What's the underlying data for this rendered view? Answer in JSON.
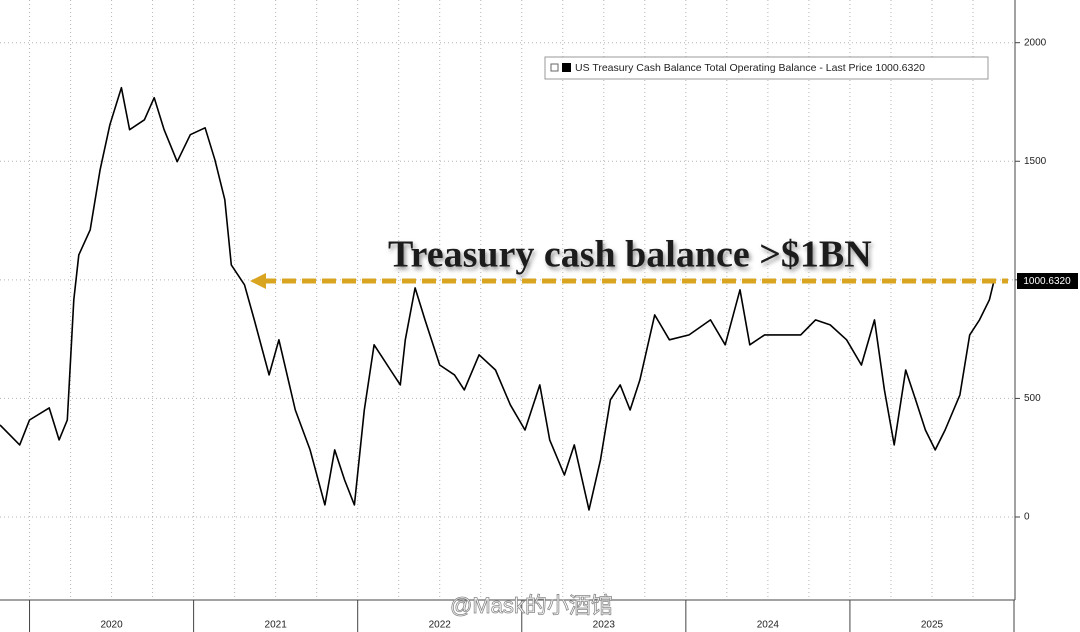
{
  "chart_data": {
    "type": "line",
    "legend": "US Treasury Cash Balance Total Operating Balance - Last Price 1000.6320",
    "annotation": "Treasury cash balance >$1BN",
    "last_price_label": "1000.6320",
    "watermark": "@Mask的小酒馆",
    "xlim": [
      2019.82,
      2026.0
    ],
    "ylim": [
      -350,
      2180
    ],
    "yticks": [
      0,
      500,
      1000,
      1500,
      2000
    ],
    "xticks": [
      {
        "value": 2020.5,
        "label": "2020"
      },
      {
        "value": 2021.5,
        "label": "2021"
      },
      {
        "value": 2022.5,
        "label": "2022"
      },
      {
        "value": 2023.5,
        "label": "2023"
      },
      {
        "value": 2024.5,
        "label": "2024"
      },
      {
        "value": 2025.5,
        "label": "2025"
      }
    ],
    "grid": true,
    "series": [
      {
        "name": "US Treasury Cash Balance Total Operating Balance",
        "color": "#000000",
        "x": [
          2019.82,
          2019.94,
          2020.0,
          2020.12,
          2020.18,
          2020.23,
          2020.27,
          2020.3,
          2020.37,
          2020.43,
          2020.49,
          2020.56,
          2020.61,
          2020.7,
          2020.76,
          2020.82,
          2020.9,
          2020.98,
          2021.07,
          2021.13,
          2021.19,
          2021.23,
          2021.31,
          2021.37,
          2021.46,
          2021.52,
          2021.62,
          2021.71,
          2021.8,
          2021.86,
          2021.92,
          2021.98,
          2022.04,
          2022.1,
          2022.2,
          2022.26,
          2022.29,
          2022.35,
          2022.41,
          2022.5,
          2022.59,
          2022.65,
          2022.74,
          2022.84,
          2022.93,
          2023.02,
          2023.11,
          2023.17,
          2023.26,
          2023.32,
          2023.41,
          2023.48,
          2023.54,
          2023.6,
          2023.66,
          2023.72,
          2023.81,
          2023.9,
          2024.02,
          2024.15,
          2024.24,
          2024.33,
          2024.39,
          2024.48,
          2024.57,
          2024.7,
          2024.79,
          2024.88,
          2024.98,
          2025.07,
          2025.15,
          2025.21,
          2025.27,
          2025.34,
          2025.4,
          2025.46,
          2025.52,
          2025.58,
          2025.67,
          2025.73,
          2025.79,
          2025.85,
          2025.88
        ],
        "values": [
          388,
          304,
          409,
          460,
          325,
          409,
          916,
          1105,
          1211,
          1464,
          1654,
          1810,
          1633,
          1675,
          1768,
          1633,
          1498,
          1612,
          1641,
          1506,
          1338,
          1063,
          979,
          831,
          599,
          747,
          451,
          283,
          51,
          283,
          156,
          51,
          451,
          726,
          620,
          557,
          747,
          966,
          831,
          641,
          599,
          536,
          684,
          620,
          473,
          367,
          557,
          325,
          177,
          304,
          30,
          241,
          494,
          557,
          451,
          578,
          852,
          747,
          768,
          831,
          726,
          958,
          726,
          768,
          768,
          768,
          831,
          810,
          747,
          641,
          831,
          536,
          304,
          620,
          494,
          367,
          283,
          367,
          515,
          768,
          831,
          916,
          1000.632
        ]
      }
    ]
  }
}
